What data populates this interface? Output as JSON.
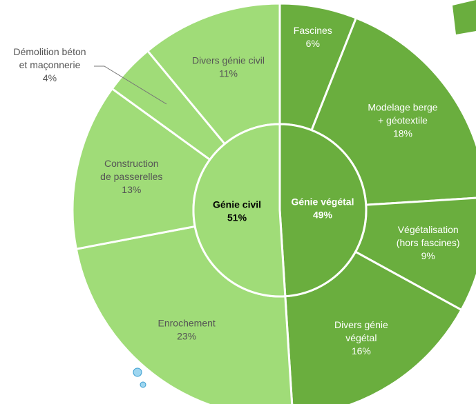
{
  "chart_data": {
    "type": "sunburst",
    "groups": [
      {
        "name": [
          "Génie végétal"
        ],
        "value": 49,
        "value_label": "49%",
        "color": "#6aae3e",
        "text_color": "#ffffff",
        "children": [
          {
            "name": [
              "Fascines"
            ],
            "value": 6,
            "value_label": "6%"
          },
          {
            "name": [
              "Modelage berge",
              "+ géotextile"
            ],
            "value": 18,
            "value_label": "18%"
          },
          {
            "name": [
              "Végétalisation",
              "(hors fascines)"
            ],
            "value": 9,
            "value_label": "9%"
          },
          {
            "name": [
              "Divers génie",
              "végétal"
            ],
            "value": 16,
            "value_label": "16%"
          }
        ]
      },
      {
        "name": [
          "Génie civil"
        ],
        "value": 51,
        "value_label": "51%",
        "color": "#a0dc78",
        "text_color": "#555555",
        "children": [
          {
            "name": [
              "Enrochement"
            ],
            "value": 23,
            "value_label": "23%"
          },
          {
            "name": [
              "Construction",
              "de passerelles"
            ],
            "value": 13,
            "value_label": "13%"
          },
          {
            "name": [
              "Démolition béton",
              "et maçonnerie"
            ],
            "value": 4,
            "value_label": "4%",
            "outside": true
          },
          {
            "name": [
              "Divers génie civil"
            ],
            "value": 11,
            "value_label": "11%"
          }
        ]
      }
    ]
  }
}
